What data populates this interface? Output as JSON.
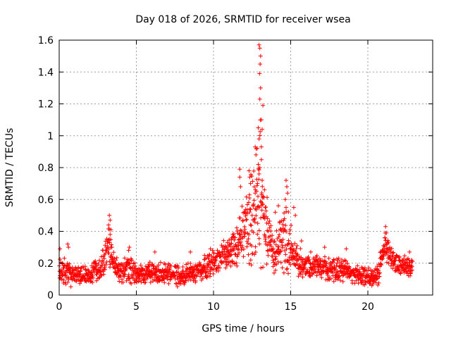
{
  "chart_data": {
    "type": "scatter",
    "title": "Day 018 of 2026, SRMTID for receiver wsea",
    "xlabel": "GPS time / hours",
    "ylabel": "SRMTID / TECUs",
    "xlim": [
      0,
      24.2
    ],
    "ylim": [
      0,
      1.6
    ],
    "x_ticks": [
      0,
      5,
      10,
      15,
      20
    ],
    "x_tick_labels": [
      "0",
      "5",
      "10",
      "15",
      "20"
    ],
    "y_ticks": [
      0,
      0.2,
      0.4,
      0.6,
      0.8,
      1.0,
      1.2,
      1.4,
      1.6
    ],
    "y_tick_labels": [
      "0",
      "0.2",
      "0.4",
      "0.6",
      "0.8",
      "1",
      "1.2",
      "1.4",
      "1.6"
    ],
    "grid": true,
    "marker": "+",
    "series_color": "#ff0000",
    "x_range_data": [
      0,
      22.9
    ],
    "profile": [
      {
        "t": 0.0,
        "base": 0.14,
        "spread": 0.09
      },
      {
        "t": 0.5,
        "base": 0.15,
        "spread": 0.1
      },
      {
        "t": 1.0,
        "base": 0.12,
        "spread": 0.07
      },
      {
        "t": 2.0,
        "base": 0.12,
        "spread": 0.07
      },
      {
        "t": 2.7,
        "base": 0.17,
        "spread": 0.08
      },
      {
        "t": 3.2,
        "base": 0.3,
        "spread": 0.15
      },
      {
        "t": 3.6,
        "base": 0.18,
        "spread": 0.08
      },
      {
        "t": 4.0,
        "base": 0.14,
        "spread": 0.08
      },
      {
        "t": 4.5,
        "base": 0.17,
        "spread": 0.1
      },
      {
        "t": 5.0,
        "base": 0.13,
        "spread": 0.07
      },
      {
        "t": 6.0,
        "base": 0.14,
        "spread": 0.08
      },
      {
        "t": 7.0,
        "base": 0.14,
        "spread": 0.08
      },
      {
        "t": 8.0,
        "base": 0.12,
        "spread": 0.08
      },
      {
        "t": 9.0,
        "base": 0.15,
        "spread": 0.08
      },
      {
        "t": 10.0,
        "base": 0.2,
        "spread": 0.09
      },
      {
        "t": 11.0,
        "base": 0.26,
        "spread": 0.12
      },
      {
        "t": 11.8,
        "base": 0.35,
        "spread": 0.2
      },
      {
        "t": 12.5,
        "base": 0.5,
        "spread": 0.35
      },
      {
        "t": 13.0,
        "base": 0.7,
        "spread": 0.55
      },
      {
        "t": 13.5,
        "base": 0.35,
        "spread": 0.25
      },
      {
        "t": 14.0,
        "base": 0.25,
        "spread": 0.15
      },
      {
        "t": 14.7,
        "base": 0.35,
        "spread": 0.25
      },
      {
        "t": 15.3,
        "base": 0.22,
        "spread": 0.12
      },
      {
        "t": 16.0,
        "base": 0.18,
        "spread": 0.08
      },
      {
        "t": 17.0,
        "base": 0.18,
        "spread": 0.08
      },
      {
        "t": 18.0,
        "base": 0.16,
        "spread": 0.09
      },
      {
        "t": 19.0,
        "base": 0.14,
        "spread": 0.07
      },
      {
        "t": 20.0,
        "base": 0.11,
        "spread": 0.06
      },
      {
        "t": 20.7,
        "base": 0.14,
        "spread": 0.08
      },
      {
        "t": 21.1,
        "base": 0.3,
        "spread": 0.12
      },
      {
        "t": 21.7,
        "base": 0.2,
        "spread": 0.08
      },
      {
        "t": 22.9,
        "base": 0.17,
        "spread": 0.07
      }
    ],
    "peaks": [
      {
        "x": 12.95,
        "y": 1.57
      },
      {
        "x": 13.0,
        "y": 1.55
      },
      {
        "x": 13.05,
        "y": 1.5
      },
      {
        "x": 13.02,
        "y": 1.45
      },
      {
        "x": 12.98,
        "y": 1.39
      },
      {
        "x": 13.05,
        "y": 1.3
      },
      {
        "x": 13.0,
        "y": 1.23
      },
      {
        "x": 13.2,
        "y": 1.19
      },
      {
        "x": 13.1,
        "y": 1.1
      },
      {
        "x": 13.15,
        "y": 1.04
      },
      {
        "x": 12.9,
        "y": 1.05
      },
      {
        "x": 12.95,
        "y": 0.98
      },
      {
        "x": 13.1,
        "y": 0.93
      },
      {
        "x": 12.7,
        "y": 0.93
      },
      {
        "x": 12.75,
        "y": 0.88
      },
      {
        "x": 13.1,
        "y": 0.85
      },
      {
        "x": 12.9,
        "y": 0.82
      },
      {
        "x": 12.95,
        "y": 0.76
      },
      {
        "x": 13.0,
        "y": 0.8
      },
      {
        "x": 12.85,
        "y": 0.7
      },
      {
        "x": 13.15,
        "y": 0.72
      },
      {
        "x": 11.7,
        "y": 0.79
      },
      {
        "x": 11.7,
        "y": 0.74
      },
      {
        "x": 11.75,
        "y": 0.68
      },
      {
        "x": 12.3,
        "y": 0.78
      },
      {
        "x": 12.35,
        "y": 0.74
      },
      {
        "x": 12.4,
        "y": 0.7
      },
      {
        "x": 13.3,
        "y": 0.66
      },
      {
        "x": 13.2,
        "y": 0.62
      },
      {
        "x": 12.7,
        "y": 0.64
      },
      {
        "x": 12.9,
        "y": 0.55
      },
      {
        "x": 13.35,
        "y": 0.55
      },
      {
        "x": 12.6,
        "y": 0.57
      },
      {
        "x": 14.7,
        "y": 0.72
      },
      {
        "x": 14.75,
        "y": 0.68
      },
      {
        "x": 14.8,
        "y": 0.64
      },
      {
        "x": 14.65,
        "y": 0.6
      },
      {
        "x": 14.7,
        "y": 0.55
      },
      {
        "x": 14.2,
        "y": 0.56
      },
      {
        "x": 15.2,
        "y": 0.55
      },
      {
        "x": 15.3,
        "y": 0.5
      },
      {
        "x": 14.0,
        "y": 0.52
      },
      {
        "x": 12.0,
        "y": 0.52
      },
      {
        "x": 12.5,
        "y": 0.5
      },
      {
        "x": 13.5,
        "y": 0.48
      },
      {
        "x": 3.25,
        "y": 0.5
      },
      {
        "x": 3.3,
        "y": 0.47
      },
      {
        "x": 3.2,
        "y": 0.44
      },
      {
        "x": 3.35,
        "y": 0.41
      },
      {
        "x": 3.3,
        "y": 0.38
      },
      {
        "x": 3.25,
        "y": 0.35
      },
      {
        "x": 21.15,
        "y": 0.43
      },
      {
        "x": 21.2,
        "y": 0.39
      },
      {
        "x": 21.1,
        "y": 0.36
      },
      {
        "x": 21.25,
        "y": 0.33
      },
      {
        "x": 0.55,
        "y": 0.32
      },
      {
        "x": 0.6,
        "y": 0.3
      },
      {
        "x": 0.05,
        "y": 0.29
      },
      {
        "x": 4.55,
        "y": 0.3
      },
      {
        "x": 4.5,
        "y": 0.28
      },
      {
        "x": 17.2,
        "y": 0.3
      },
      {
        "x": 18.6,
        "y": 0.29
      },
      {
        "x": 10.9,
        "y": 0.33
      },
      {
        "x": 11.2,
        "y": 0.36
      },
      {
        "x": 22.7,
        "y": 0.27
      },
      {
        "x": 6.2,
        "y": 0.27
      },
      {
        "x": 8.5,
        "y": 0.27
      },
      {
        "x": 9.8,
        "y": 0.29
      },
      {
        "x": 14.3,
        "y": 0.46
      },
      {
        "x": 15.7,
        "y": 0.34
      },
      {
        "x": 16.3,
        "y": 0.27
      }
    ],
    "noise_seed": 18
  }
}
